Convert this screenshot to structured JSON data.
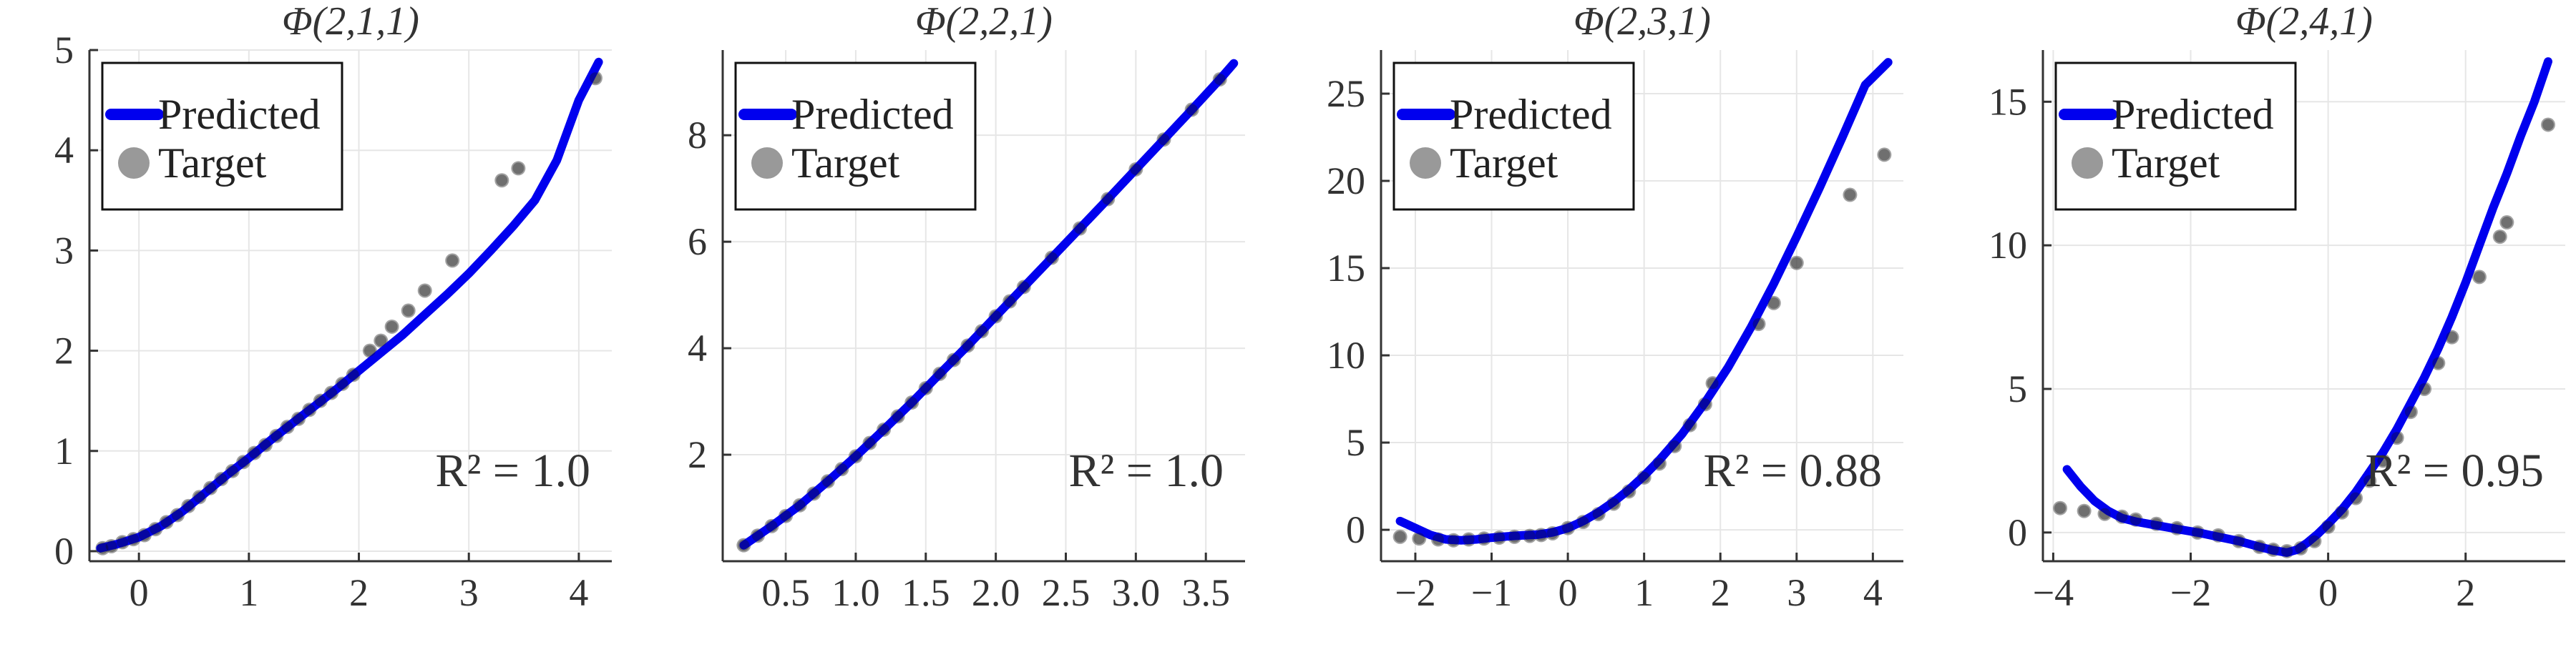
{
  "chart_data": [
    {
      "type": "scatter",
      "title": "Φ(2,1,1)",
      "annotation": "R² = 1.0",
      "xlim": [
        -0.45,
        4.3
      ],
      "ylim": [
        -0.1,
        5.0
      ],
      "xticks": [
        0,
        1,
        2,
        3,
        4
      ],
      "xtick_labels": [
        "0",
        "1",
        "2",
        "3",
        "4"
      ],
      "yticks": [
        0,
        1,
        2,
        3,
        4,
        5
      ],
      "ytick_labels": [
        "0",
        "1",
        "2",
        "3",
        "4",
        "5"
      ],
      "grid": true,
      "legend_position": "top-left",
      "series": [
        {
          "name": "Predicted",
          "kind": "line",
          "color": "#0000ee",
          "x": [
            -0.35,
            -0.2,
            0.0,
            0.2,
            0.4,
            0.6,
            0.8,
            1.0,
            1.2,
            1.4,
            1.6,
            1.8,
            2.0,
            2.2,
            2.4,
            2.6,
            2.8,
            3.0,
            3.2,
            3.4,
            3.6,
            3.8,
            4.0,
            4.18
          ],
          "y": [
            0.03,
            0.07,
            0.14,
            0.25,
            0.4,
            0.58,
            0.76,
            0.93,
            1.11,
            1.28,
            1.45,
            1.62,
            1.8,
            1.98,
            2.16,
            2.36,
            2.56,
            2.77,
            3.0,
            3.24,
            3.5,
            3.9,
            4.5,
            4.88
          ]
        },
        {
          "name": "Target",
          "kind": "scatter",
          "color": "#555555",
          "x": [
            -0.33,
            -0.25,
            -0.15,
            -0.05,
            0.05,
            0.15,
            0.25,
            0.35,
            0.45,
            0.55,
            0.65,
            0.75,
            0.85,
            0.95,
            1.05,
            1.15,
            1.25,
            1.35,
            1.45,
            1.55,
            1.65,
            1.75,
            1.85,
            1.95,
            2.1,
            2.2,
            2.3,
            2.45,
            2.6,
            2.85,
            3.3,
            3.45,
            4.15
          ],
          "y": [
            0.03,
            0.05,
            0.09,
            0.12,
            0.16,
            0.22,
            0.29,
            0.36,
            0.45,
            0.54,
            0.63,
            0.72,
            0.8,
            0.89,
            0.98,
            1.06,
            1.15,
            1.24,
            1.32,
            1.41,
            1.5,
            1.58,
            1.67,
            1.76,
            2.0,
            2.1,
            2.24,
            2.4,
            2.6,
            2.9,
            3.7,
            3.82,
            4.72
          ]
        }
      ]
    },
    {
      "type": "scatter",
      "title": "Φ(2,2,1)",
      "annotation": "R² = 1.0",
      "xlim": [
        0.05,
        3.78
      ],
      "ylim": [
        0.0,
        9.6
      ],
      "xticks": [
        0.5,
        1.0,
        1.5,
        2.0,
        2.5,
        3.0,
        3.5
      ],
      "xtick_labels": [
        "0.5",
        "1.0",
        "1.5",
        "2.0",
        "2.5",
        "3.0",
        "3.5"
      ],
      "yticks": [
        2,
        4,
        6,
        8
      ],
      "ytick_labels": [
        "2",
        "4",
        "6",
        "8"
      ],
      "grid": true,
      "legend_position": "top-left",
      "series": [
        {
          "name": "Predicted",
          "kind": "line",
          "color": "#0000ee",
          "x": [
            0.2,
            0.4,
            0.6,
            0.8,
            1.0,
            1.2,
            1.4,
            1.6,
            1.8,
            2.0,
            2.2,
            2.4,
            2.6,
            2.8,
            3.0,
            3.2,
            3.4,
            3.6,
            3.7
          ],
          "y": [
            0.3,
            0.66,
            1.05,
            1.5,
            1.97,
            2.47,
            2.98,
            3.52,
            4.05,
            4.6,
            5.15,
            5.7,
            6.25,
            6.8,
            7.36,
            7.92,
            8.48,
            9.05,
            9.35
          ]
        },
        {
          "name": "Target",
          "kind": "scatter",
          "color": "#555555",
          "x": [
            0.2,
            0.3,
            0.4,
            0.5,
            0.6,
            0.7,
            0.8,
            0.9,
            1.0,
            1.1,
            1.2,
            1.3,
            1.4,
            1.5,
            1.6,
            1.7,
            1.8,
            1.9,
            2.0,
            2.1,
            2.2,
            2.4,
            2.6,
            2.8,
            3.0,
            3.2,
            3.4,
            3.6
          ],
          "y": [
            0.3,
            0.48,
            0.66,
            0.85,
            1.05,
            1.27,
            1.5,
            1.73,
            1.97,
            2.22,
            2.47,
            2.72,
            2.98,
            3.25,
            3.52,
            3.78,
            4.05,
            4.32,
            4.6,
            4.88,
            5.15,
            5.7,
            6.25,
            6.8,
            7.36,
            7.92,
            8.48,
            9.05
          ]
        }
      ]
    },
    {
      "type": "scatter",
      "title": "Φ(2,3,1)",
      "annotation": "R² = 0.88",
      "xlim": [
        -2.45,
        4.4
      ],
      "ylim": [
        -1.8,
        27.5
      ],
      "xticks": [
        -2,
        -1,
        0,
        1,
        2,
        3,
        4
      ],
      "xtick_labels": [
        "−2",
        "−1",
        "0",
        "1",
        "2",
        "3",
        "4"
      ],
      "yticks": [
        0,
        5,
        10,
        15,
        20,
        25
      ],
      "ytick_labels": [
        "0",
        "5",
        "10",
        "15",
        "20",
        "25"
      ],
      "grid": true,
      "legend_position": "top-left",
      "series": [
        {
          "name": "Predicted",
          "kind": "line",
          "color": "#0000ee",
          "x": [
            -2.2,
            -2.0,
            -1.8,
            -1.6,
            -1.4,
            -1.2,
            -1.0,
            -0.8,
            -0.6,
            -0.4,
            -0.2,
            0.0,
            0.2,
            0.4,
            0.6,
            0.8,
            1.0,
            1.2,
            1.5,
            1.8,
            2.1,
            2.4,
            2.7,
            3.0,
            3.3,
            3.6,
            3.9,
            4.2
          ],
          "y": [
            0.5,
            0.1,
            -0.3,
            -0.55,
            -0.6,
            -0.55,
            -0.45,
            -0.38,
            -0.32,
            -0.28,
            -0.15,
            0.1,
            0.5,
            1.0,
            1.6,
            2.3,
            3.1,
            4.0,
            5.5,
            7.3,
            9.3,
            11.6,
            14.1,
            16.8,
            19.6,
            22.5,
            25.5,
            26.8
          ]
        },
        {
          "name": "Target",
          "kind": "scatter",
          "color": "#555555",
          "x": [
            -2.2,
            -1.95,
            -1.7,
            -1.5,
            -1.3,
            -1.1,
            -0.9,
            -0.7,
            -0.5,
            -0.35,
            -0.2,
            0.0,
            0.2,
            0.4,
            0.6,
            0.8,
            1.0,
            1.2,
            1.4,
            1.6,
            1.8,
            1.9,
            2.5,
            2.7,
            3.0,
            3.7,
            4.15
          ],
          "y": [
            -0.4,
            -0.5,
            -0.55,
            -0.6,
            -0.55,
            -0.5,
            -0.45,
            -0.4,
            -0.35,
            -0.3,
            -0.2,
            0.1,
            0.45,
            0.9,
            1.5,
            2.2,
            3.0,
            3.8,
            4.8,
            6.0,
            7.2,
            8.4,
            11.8,
            13.0,
            15.3,
            19.2,
            21.5
          ]
        }
      ]
    },
    {
      "type": "scatter",
      "title": "Φ(2,4,1)",
      "annotation": "R² = 0.95",
      "xlim": [
        -4.15,
        3.45
      ],
      "ylim": [
        -1.0,
        16.8
      ],
      "xticks": [
        -4,
        -2,
        0,
        2
      ],
      "xtick_labels": [
        "−4",
        "−2",
        "0",
        "2"
      ],
      "yticks": [
        0,
        5,
        10,
        15
      ],
      "ytick_labels": [
        "0",
        "5",
        "10",
        "15"
      ],
      "grid": true,
      "legend_position": "top-left",
      "series": [
        {
          "name": "Predicted",
          "kind": "line",
          "color": "#0000ee",
          "x": [
            -3.8,
            -3.6,
            -3.4,
            -3.2,
            -3.0,
            -2.8,
            -2.5,
            -2.2,
            -1.9,
            -1.6,
            -1.3,
            -1.0,
            -0.8,
            -0.6,
            -0.45,
            -0.3,
            -0.15,
            0.0,
            0.2,
            0.4,
            0.6,
            0.8,
            1.0,
            1.2,
            1.4,
            1.6,
            1.8,
            2.0,
            2.2,
            2.4,
            2.6,
            2.8,
            3.0,
            3.2
          ],
          "y": [
            2.2,
            1.6,
            1.1,
            0.75,
            0.5,
            0.38,
            0.25,
            0.12,
            0.0,
            -0.15,
            -0.3,
            -0.5,
            -0.62,
            -0.7,
            -0.6,
            -0.35,
            -0.05,
            0.3,
            0.8,
            1.4,
            2.1,
            2.8,
            3.6,
            4.5,
            5.4,
            6.4,
            7.5,
            8.7,
            10.0,
            11.3,
            12.5,
            13.8,
            15.0,
            16.4
          ]
        },
        {
          "name": "Target",
          "kind": "scatter",
          "color": "#555555",
          "x": [
            -3.9,
            -3.55,
            -3.25,
            -3.0,
            -2.8,
            -2.5,
            -2.2,
            -1.9,
            -1.6,
            -1.3,
            -1.0,
            -0.8,
            -0.6,
            -0.4,
            -0.2,
            0.0,
            0.2,
            0.4,
            0.6,
            0.8,
            1.0,
            1.2,
            1.4,
            1.6,
            1.8,
            2.2,
            2.5,
            2.6,
            3.2
          ],
          "y": [
            0.85,
            0.75,
            0.65,
            0.55,
            0.45,
            0.3,
            0.15,
            0.0,
            -0.1,
            -0.3,
            -0.5,
            -0.6,
            -0.65,
            -0.55,
            -0.3,
            0.2,
            0.7,
            1.2,
            1.8,
            2.5,
            3.3,
            4.2,
            5.0,
            5.9,
            6.8,
            8.9,
            10.3,
            10.8,
            14.2
          ]
        }
      ]
    }
  ]
}
